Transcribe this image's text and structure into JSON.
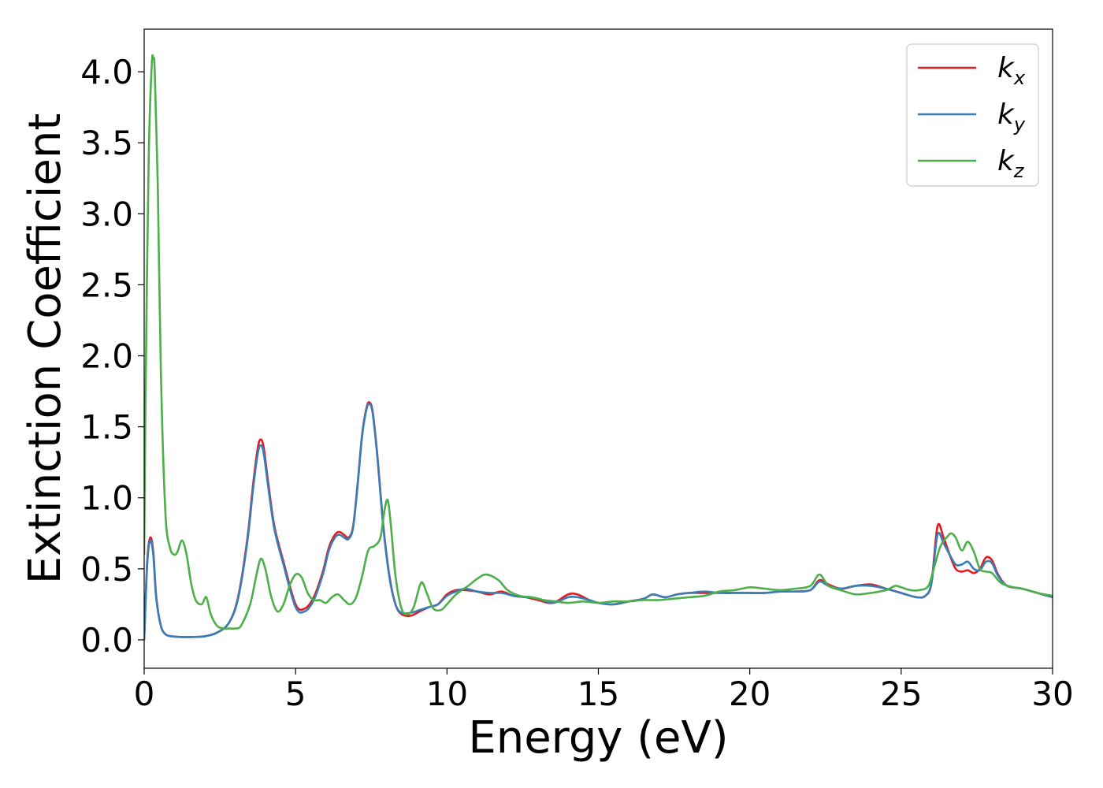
{
  "chart_data": {
    "type": "line",
    "xlabel": "Energy (eV)",
    "ylabel": "Extinction Coefficient",
    "xlim": [
      0,
      30
    ],
    "ylim": [
      -0.2,
      4.3
    ],
    "xticks": [
      0,
      5,
      10,
      15,
      20,
      25,
      30
    ],
    "xtick_labels": [
      "0",
      "5",
      "10",
      "15",
      "20",
      "25",
      "30"
    ],
    "yticks": [
      0.0,
      0.5,
      1.0,
      1.5,
      2.0,
      2.5,
      3.0,
      3.5,
      4.0
    ],
    "ytick_labels": [
      "0.0",
      "0.5",
      "1.0",
      "1.5",
      "2.0",
      "2.5",
      "3.0",
      "3.5",
      "4.0"
    ],
    "grid": false,
    "legend_position": "top-right",
    "series": [
      {
        "name": "k_x",
        "label_base": "k",
        "label_sub": "x",
        "color": "#e41a1c",
        "x": [
          0,
          0.1,
          0.2,
          0.3,
          0.4,
          0.55,
          0.7,
          0.9,
          1.2,
          1.6,
          2.0,
          2.4,
          2.8,
          3.1,
          3.4,
          3.6,
          3.75,
          3.85,
          3.95,
          4.1,
          4.3,
          4.6,
          5.0,
          5.3,
          5.6,
          5.9,
          6.1,
          6.3,
          6.45,
          6.6,
          6.75,
          6.9,
          7.05,
          7.2,
          7.35,
          7.45,
          7.55,
          7.7,
          7.9,
          8.1,
          8.3,
          8.5,
          8.8,
          9.1,
          9.4,
          9.7,
          10.0,
          10.3,
          10.6,
          11.0,
          11.4,
          11.8,
          12.2,
          12.6,
          13.0,
          13.5,
          14.0,
          14.3,
          14.7,
          15.0,
          15.5,
          16.0,
          16.5,
          16.8,
          17.2,
          17.6,
          18.0,
          18.5,
          19.0,
          19.5,
          20.0,
          20.5,
          21.0,
          21.5,
          22.0,
          22.3,
          22.6,
          23.0,
          23.5,
          24.0,
          24.5,
          25.0,
          25.5,
          25.8,
          26.0,
          26.2,
          26.4,
          26.6,
          26.8,
          27.0,
          27.2,
          27.4,
          27.6,
          27.8,
          28.0,
          28.2,
          28.5,
          29.0,
          29.5,
          30.0
        ],
        "y": [
          0.0,
          0.55,
          0.72,
          0.62,
          0.3,
          0.1,
          0.04,
          0.025,
          0.02,
          0.02,
          0.025,
          0.05,
          0.12,
          0.3,
          0.7,
          1.1,
          1.35,
          1.41,
          1.35,
          1.1,
          0.8,
          0.55,
          0.25,
          0.22,
          0.3,
          0.48,
          0.65,
          0.74,
          0.76,
          0.74,
          0.72,
          0.8,
          1.1,
          1.45,
          1.64,
          1.67,
          1.6,
          1.3,
          0.8,
          0.45,
          0.25,
          0.18,
          0.17,
          0.2,
          0.23,
          0.25,
          0.32,
          0.35,
          0.35,
          0.34,
          0.32,
          0.34,
          0.31,
          0.3,
          0.28,
          0.26,
          0.32,
          0.32,
          0.28,
          0.26,
          0.25,
          0.27,
          0.29,
          0.32,
          0.3,
          0.32,
          0.33,
          0.33,
          0.33,
          0.33,
          0.33,
          0.33,
          0.34,
          0.34,
          0.35,
          0.42,
          0.39,
          0.36,
          0.38,
          0.39,
          0.36,
          0.33,
          0.3,
          0.31,
          0.4,
          0.8,
          0.72,
          0.6,
          0.5,
          0.48,
          0.49,
          0.47,
          0.5,
          0.58,
          0.56,
          0.46,
          0.38,
          0.36,
          0.33,
          0.3
        ]
      },
      {
        "name": "k_y",
        "label_base": "k",
        "label_sub": "y",
        "color": "#377eb8",
        "x": [
          0,
          0.1,
          0.2,
          0.3,
          0.4,
          0.55,
          0.7,
          0.9,
          1.2,
          1.6,
          2.0,
          2.4,
          2.8,
          3.1,
          3.4,
          3.6,
          3.75,
          3.85,
          3.95,
          4.1,
          4.3,
          4.6,
          5.0,
          5.3,
          5.6,
          5.9,
          6.1,
          6.3,
          6.45,
          6.6,
          6.75,
          6.9,
          7.05,
          7.2,
          7.35,
          7.45,
          7.55,
          7.7,
          7.9,
          8.1,
          8.3,
          8.5,
          8.8,
          9.1,
          9.4,
          9.7,
          10.0,
          10.3,
          10.6,
          11.0,
          11.4,
          11.8,
          12.2,
          12.6,
          13.0,
          13.5,
          14.0,
          14.3,
          14.7,
          15.0,
          15.5,
          16.0,
          16.5,
          16.8,
          17.2,
          17.6,
          18.0,
          18.5,
          19.0,
          19.5,
          20.0,
          20.5,
          21.0,
          21.5,
          22.0,
          22.3,
          22.6,
          23.0,
          23.5,
          24.0,
          24.5,
          25.0,
          25.5,
          25.8,
          26.0,
          26.2,
          26.4,
          26.6,
          26.8,
          27.0,
          27.2,
          27.4,
          27.6,
          27.8,
          28.0,
          28.2,
          28.5,
          29.0,
          29.5,
          30.0
        ],
        "y": [
          0.0,
          0.53,
          0.7,
          0.6,
          0.29,
          0.1,
          0.04,
          0.025,
          0.02,
          0.02,
          0.025,
          0.05,
          0.12,
          0.29,
          0.68,
          1.07,
          1.31,
          1.37,
          1.31,
          1.07,
          0.78,
          0.53,
          0.23,
          0.2,
          0.28,
          0.46,
          0.63,
          0.72,
          0.74,
          0.72,
          0.71,
          0.79,
          1.09,
          1.44,
          1.63,
          1.66,
          1.59,
          1.29,
          0.79,
          0.44,
          0.25,
          0.19,
          0.19,
          0.21,
          0.23,
          0.25,
          0.31,
          0.34,
          0.36,
          0.34,
          0.33,
          0.33,
          0.31,
          0.3,
          0.29,
          0.26,
          0.3,
          0.3,
          0.28,
          0.26,
          0.25,
          0.27,
          0.29,
          0.32,
          0.3,
          0.32,
          0.33,
          0.34,
          0.33,
          0.33,
          0.33,
          0.33,
          0.34,
          0.34,
          0.35,
          0.41,
          0.38,
          0.36,
          0.38,
          0.38,
          0.36,
          0.33,
          0.3,
          0.31,
          0.4,
          0.74,
          0.68,
          0.6,
          0.53,
          0.53,
          0.55,
          0.5,
          0.49,
          0.55,
          0.54,
          0.45,
          0.38,
          0.36,
          0.33,
          0.3
        ]
      },
      {
        "name": "k_z",
        "label_base": "k",
        "label_sub": "z",
        "color": "#4daf4a",
        "x": [
          0,
          0.05,
          0.15,
          0.25,
          0.3,
          0.35,
          0.45,
          0.55,
          0.7,
          0.85,
          1.0,
          1.1,
          1.25,
          1.4,
          1.55,
          1.7,
          1.9,
          2.05,
          2.2,
          2.4,
          2.6,
          2.8,
          3.0,
          3.2,
          3.5,
          3.7,
          3.85,
          4.0,
          4.2,
          4.4,
          4.6,
          4.8,
          5.0,
          5.2,
          5.4,
          5.6,
          5.8,
          6.0,
          6.2,
          6.4,
          6.6,
          6.8,
          7.0,
          7.2,
          7.4,
          7.6,
          7.8,
          7.95,
          8.05,
          8.15,
          8.3,
          8.5,
          8.7,
          8.9,
          9.1,
          9.2,
          9.35,
          9.55,
          9.8,
          10.0,
          10.3,
          10.7,
          11.0,
          11.3,
          11.7,
          12.0,
          12.4,
          12.8,
          13.2,
          13.6,
          14.0,
          14.5,
          15.0,
          15.5,
          16.0,
          16.5,
          17.0,
          17.5,
          18.0,
          18.5,
          19.0,
          19.5,
          20.0,
          20.5,
          21.0,
          21.5,
          22.0,
          22.3,
          22.6,
          23.0,
          23.5,
          24.0,
          24.5,
          24.8,
          25.0,
          25.3,
          25.6,
          25.9,
          26.1,
          26.3,
          26.5,
          26.65,
          26.8,
          27.0,
          27.2,
          27.4,
          27.6,
          27.8,
          28.0,
          28.3,
          28.7,
          29.0,
          29.5,
          30.0
        ],
        "y": [
          0.6,
          1.8,
          3.4,
          4.05,
          4.09,
          4.0,
          3.2,
          1.9,
          0.9,
          0.65,
          0.6,
          0.62,
          0.7,
          0.6,
          0.4,
          0.28,
          0.25,
          0.3,
          0.18,
          0.1,
          0.08,
          0.08,
          0.08,
          0.1,
          0.25,
          0.45,
          0.57,
          0.5,
          0.3,
          0.2,
          0.25,
          0.38,
          0.46,
          0.44,
          0.33,
          0.28,
          0.28,
          0.26,
          0.3,
          0.32,
          0.28,
          0.25,
          0.3,
          0.45,
          0.63,
          0.66,
          0.72,
          0.93,
          0.98,
          0.8,
          0.45,
          0.22,
          0.18,
          0.23,
          0.38,
          0.4,
          0.32,
          0.22,
          0.21,
          0.25,
          0.32,
          0.38,
          0.43,
          0.46,
          0.42,
          0.35,
          0.31,
          0.3,
          0.28,
          0.27,
          0.26,
          0.27,
          0.26,
          0.27,
          0.27,
          0.28,
          0.28,
          0.29,
          0.3,
          0.31,
          0.34,
          0.35,
          0.37,
          0.36,
          0.35,
          0.36,
          0.38,
          0.46,
          0.38,
          0.35,
          0.32,
          0.33,
          0.35,
          0.38,
          0.37,
          0.35,
          0.35,
          0.38,
          0.52,
          0.66,
          0.72,
          0.75,
          0.72,
          0.63,
          0.69,
          0.62,
          0.5,
          0.48,
          0.47,
          0.4,
          0.37,
          0.36,
          0.33,
          0.31
        ]
      }
    ]
  }
}
